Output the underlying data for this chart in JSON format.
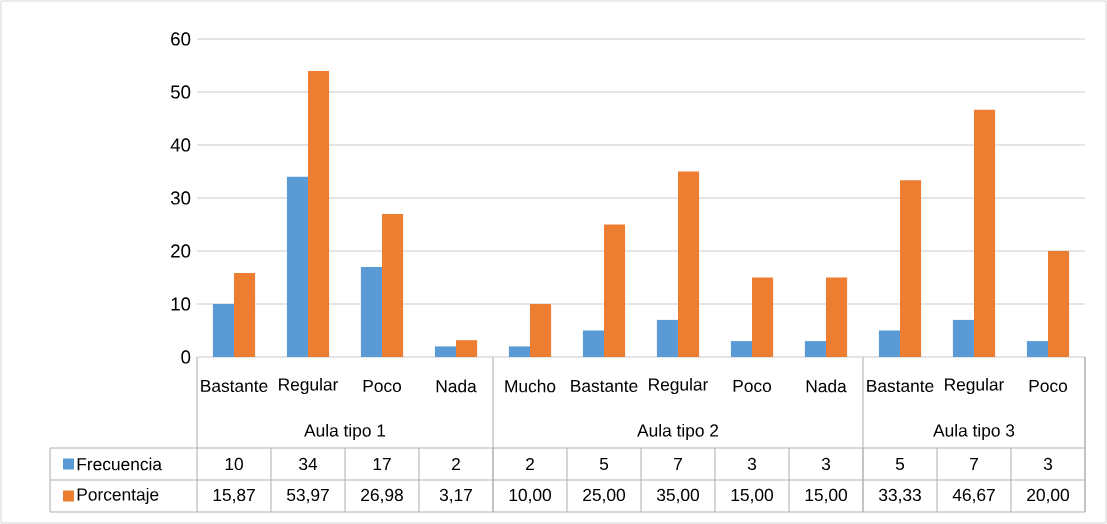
{
  "chart_data": {
    "type": "bar",
    "categories": [
      "Bastante",
      "Regular",
      "Poco",
      "Nada",
      "Mucho",
      "Bastante",
      "Regular",
      "Poco",
      "Nada",
      "Bastante",
      "Regular",
      "Poco"
    ],
    "annotations": [
      "Aula tipo 1",
      "Aula tipo 2",
      "Aula tipo 3"
    ],
    "series": [
      {
        "name": "Frecuencia",
        "color": "#5b9bd5",
        "values": [
          10,
          34,
          17,
          2,
          2,
          5,
          7,
          3,
          3,
          5,
          7,
          3
        ],
        "value_labels": [
          "10",
          "34",
          "17",
          "2",
          "2",
          "5",
          "7",
          "3",
          "3",
          "5",
          "7",
          "3"
        ]
      },
      {
        "name": "Porcentaje",
        "color": "#ed7d31",
        "values": [
          15.87,
          53.97,
          26.98,
          3.17,
          10.0,
          25.0,
          35.0,
          15.0,
          15.0,
          33.33,
          46.67,
          20.0
        ],
        "value_labels": [
          "15,87",
          "53,97",
          "26,98",
          "3,17",
          "10,00",
          "25,00",
          "35,00",
          "15,00",
          "15,00",
          "33,33",
          "46,67",
          "20,00"
        ]
      }
    ],
    "ylim": [
      0,
      60
    ],
    "yticks": [
      0,
      10,
      20,
      30,
      40,
      50,
      60
    ],
    "grid": "y",
    "legend": "bottom"
  }
}
